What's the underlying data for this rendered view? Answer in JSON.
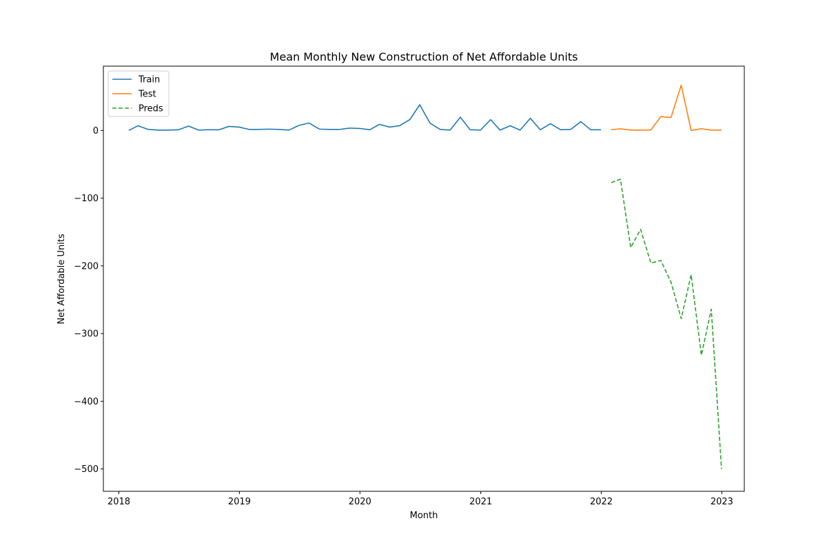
{
  "chart_data": {
    "type": "line",
    "title": "Mean Monthly New Construction of Net Affordable Units",
    "xlabel": "Month",
    "ylabel": "Net Affordable Units",
    "xlim": [
      "2017-11-15",
      "2023-03-10"
    ],
    "ylim": [
      -533,
      95
    ],
    "x_ticks": [
      "2018-01-01",
      "2019-01-01",
      "2020-01-01",
      "2021-01-01",
      "2022-01-01",
      "2023-01-01"
    ],
    "x_tick_labels": [
      "2018",
      "2019",
      "2020",
      "2021",
      "2022",
      "2023"
    ],
    "y_ticks": [
      0,
      -100,
      -200,
      -300,
      -400,
      -500
    ],
    "y_tick_labels": [
      "0",
      "−100",
      "−200",
      "−300",
      "−400",
      "−500"
    ],
    "grid": false,
    "legend_position": "upper-left",
    "series": [
      {
        "name": "Train",
        "color": "#1f77b4",
        "style": "solid",
        "x": [
          "2018-01-31",
          "2018-02-28",
          "2018-03-31",
          "2018-04-30",
          "2018-05-31",
          "2018-06-30",
          "2018-07-31",
          "2018-08-31",
          "2018-09-30",
          "2018-10-31",
          "2018-11-30",
          "2018-12-31",
          "2019-01-31",
          "2019-02-28",
          "2019-03-31",
          "2019-04-30",
          "2019-05-31",
          "2019-06-30",
          "2019-07-31",
          "2019-08-31",
          "2019-09-30",
          "2019-10-31",
          "2019-11-30",
          "2019-12-31",
          "2020-01-31",
          "2020-02-29",
          "2020-03-31",
          "2020-04-30",
          "2020-05-31",
          "2020-06-30",
          "2020-07-31",
          "2020-08-31",
          "2020-09-30",
          "2020-10-31",
          "2020-11-30",
          "2020-12-31",
          "2021-01-31",
          "2021-02-28",
          "2021-03-31",
          "2021-04-30",
          "2021-05-31",
          "2021-06-30",
          "2021-07-31",
          "2021-08-31",
          "2021-09-30",
          "2021-10-31",
          "2021-11-30",
          "2021-12-31"
        ],
        "values": [
          0,
          7,
          1.5,
          0.5,
          0.5,
          1,
          6.5,
          0.5,
          1,
          1,
          6,
          5,
          1.5,
          1.5,
          2,
          1.5,
          0.5,
          7.5,
          11,
          2,
          1.5,
          1.5,
          3.5,
          3,
          1,
          9,
          5,
          7,
          16,
          38,
          11,
          1.5,
          0.5,
          19.5,
          1,
          0.5,
          16,
          0.5,
          7,
          0.5,
          18,
          1,
          10,
          1,
          1.5,
          13,
          1,
          1
        ]
      },
      {
        "name": "Test",
        "color": "#ff7f0e",
        "style": "solid",
        "x": [
          "2022-01-31",
          "2022-02-28",
          "2022-03-31",
          "2022-04-30",
          "2022-05-31",
          "2022-06-30",
          "2022-07-31",
          "2022-08-31",
          "2022-09-30",
          "2022-10-31",
          "2022-11-30",
          "2022-12-31"
        ],
        "values": [
          1,
          2.5,
          0.5,
          0.5,
          0.5,
          20.5,
          19,
          67,
          0,
          2.5,
          0.5,
          0.5
        ]
      },
      {
        "name": "Preds",
        "color": "#2ca02c",
        "style": "dashed",
        "x": [
          "2022-01-31",
          "2022-02-28",
          "2022-03-31",
          "2022-04-30",
          "2022-05-31",
          "2022-06-30",
          "2022-07-31",
          "2022-08-31",
          "2022-09-30",
          "2022-10-31",
          "2022-11-30",
          "2022-12-31"
        ],
        "values": [
          -77,
          -72,
          -173,
          -146,
          -196,
          -192,
          -224,
          -278,
          -213,
          -332,
          -264,
          -500
        ]
      }
    ]
  }
}
